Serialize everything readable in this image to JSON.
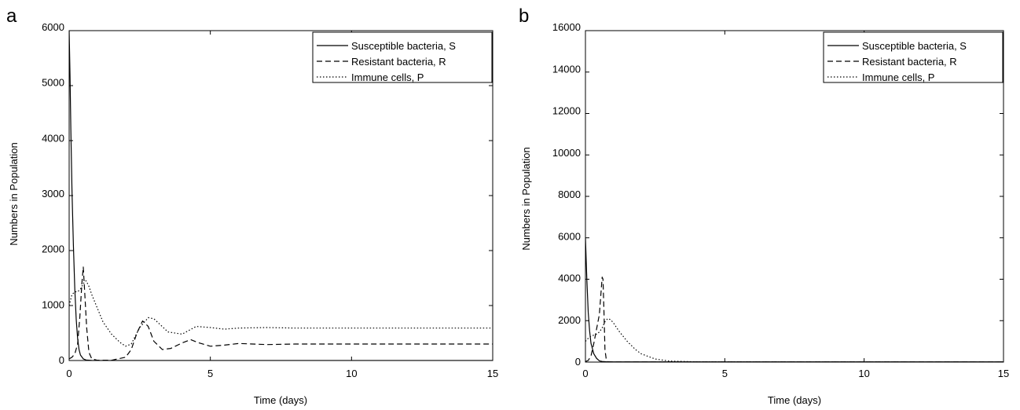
{
  "panels": [
    {
      "panel_label": "a",
      "xlabel": "Time (days)",
      "ylabel": "Numbers in Population",
      "xticks": [
        "0",
        "5",
        "10",
        "15"
      ],
      "yticks": [
        "0",
        "1000",
        "2000",
        "3000",
        "4000",
        "5000",
        "6000"
      ],
      "legend": [
        "Susceptible bacteria, S",
        "Resistant bacteria, R",
        "Immune cells, P"
      ]
    },
    {
      "panel_label": "b",
      "xlabel": "Time (days)",
      "ylabel": "Numbers in Population",
      "xticks": [
        "0",
        "5",
        "10",
        "15"
      ],
      "yticks": [
        "0",
        "2000",
        "4000",
        "6000",
        "8000",
        "10000",
        "12000",
        "14000",
        "16000"
      ],
      "legend": [
        "Susceptible bacteria, S",
        "Resistant bacteria, R",
        "Immune cells, P"
      ]
    }
  ],
  "chart_data": [
    {
      "type": "line",
      "panel": "a",
      "xlabel": "Time (days)",
      "ylabel": "Numbers in Population",
      "xlim": [
        0,
        15
      ],
      "ylim": [
        0,
        6000
      ],
      "xticks": [
        0,
        5,
        10,
        15
      ],
      "yticks": [
        0,
        1000,
        2000,
        3000,
        4000,
        5000,
        6000
      ],
      "grid": false,
      "legend_position": "top-right",
      "series": [
        {
          "name": "Susceptible bacteria, S",
          "style": "solid",
          "x": [
            0,
            0.03,
            0.06,
            0.1,
            0.15,
            0.2,
            0.25,
            0.3,
            0.35,
            0.4,
            0.5,
            0.6,
            0.8,
            1.0,
            15
          ],
          "y": [
            6000,
            5200,
            4200,
            3100,
            2100,
            1300,
            750,
            400,
            200,
            100,
            30,
            10,
            3,
            0,
            0
          ]
        },
        {
          "name": "Resistant bacteria, R",
          "style": "dashed",
          "x": [
            0,
            0.1,
            0.2,
            0.3,
            0.38,
            0.45,
            0.5,
            0.55,
            0.62,
            0.7,
            0.8,
            1.0,
            1.5,
            2.0,
            2.2,
            2.4,
            2.6,
            2.8,
            3.0,
            3.3,
            3.6,
            4.0,
            4.3,
            4.6,
            5.0,
            5.5,
            6.0,
            6.5,
            7.0,
            8.0,
            10.0,
            12.0,
            15.0
          ],
          "y": [
            30,
            60,
            120,
            300,
            800,
            1400,
            1700,
            1250,
            600,
            150,
            30,
            5,
            5,
            60,
            200,
            500,
            720,
            620,
            350,
            200,
            220,
            320,
            380,
            320,
            260,
            280,
            310,
            300,
            290,
            300,
            300,
            300,
            300
          ]
        },
        {
          "name": "Immune cells, P",
          "style": "dotted",
          "x": [
            0,
            0.05,
            0.1,
            0.2,
            0.3,
            0.4,
            0.5,
            0.6,
            0.7,
            0.8,
            1.0,
            1.2,
            1.5,
            1.8,
            2.0,
            2.2,
            2.5,
            2.8,
            3.0,
            3.5,
            4.0,
            4.5,
            5.0,
            5.5,
            6.0,
            7.0,
            8.0,
            10.0,
            12.0,
            15.0
          ],
          "y": [
            1000,
            1100,
            1200,
            1250,
            1250,
            1300,
            1400,
            1450,
            1350,
            1200,
            950,
            700,
            480,
            330,
            260,
            300,
            600,
            780,
            760,
            520,
            480,
            620,
            600,
            570,
            590,
            600,
            590,
            590,
            590,
            590
          ]
        }
      ]
    },
    {
      "type": "line",
      "panel": "b",
      "xlabel": "Time (days)",
      "ylabel": "Numbers in Population",
      "xlim": [
        0,
        15
      ],
      "ylim": [
        0,
        16000
      ],
      "xticks": [
        0,
        5,
        10,
        15
      ],
      "yticks": [
        0,
        2000,
        4000,
        6000,
        8000,
        10000,
        12000,
        14000,
        16000
      ],
      "grid": false,
      "legend_position": "top-right",
      "series": [
        {
          "name": "Susceptible bacteria, S",
          "style": "solid",
          "x": [
            0,
            0.05,
            0.1,
            0.15,
            0.2,
            0.3,
            0.4,
            0.5,
            0.6,
            0.8,
            15
          ],
          "y": [
            6000,
            4000,
            2400,
            1500,
            900,
            400,
            180,
            60,
            30,
            10,
            10
          ]
        },
        {
          "name": "Resistant bacteria, R",
          "style": "dashed",
          "x": [
            0,
            0.1,
            0.2,
            0.3,
            0.4,
            0.5,
            0.55,
            0.6,
            0.63,
            0.67,
            0.7,
            0.75,
            0.8,
            1.0,
            15
          ],
          "y": [
            30,
            80,
            300,
            900,
            1600,
            2300,
            3200,
            4100,
            4000,
            2200,
            600,
            100,
            20,
            5,
            5
          ]
        },
        {
          "name": "Immune cells, P",
          "style": "dotted",
          "x": [
            0,
            0.1,
            0.2,
            0.3,
            0.4,
            0.5,
            0.6,
            0.7,
            0.8,
            0.9,
            1.0,
            1.2,
            1.5,
            1.8,
            2.0,
            2.5,
            3.0,
            4.0,
            15
          ],
          "y": [
            1000,
            1150,
            1250,
            1300,
            1350,
            1450,
            1650,
            1950,
            2100,
            2050,
            1900,
            1500,
            1000,
            600,
            400,
            150,
            50,
            10,
            0
          ]
        }
      ]
    }
  ]
}
